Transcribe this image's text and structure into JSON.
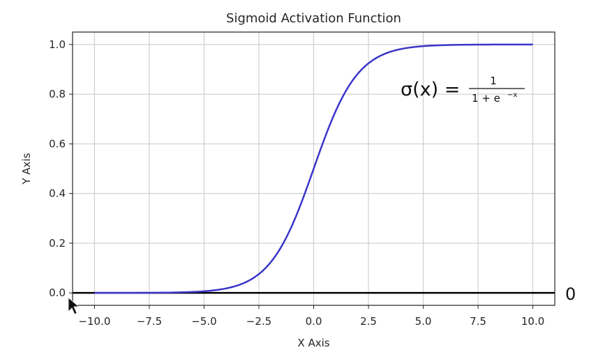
{
  "chart_data": {
    "type": "line",
    "title": "Sigmoid Activation Function",
    "xlabel": "X Axis",
    "ylabel": "Y Axis",
    "xlim": [
      -11.0,
      11.0
    ],
    "ylim": [
      -0.05,
      1.05
    ],
    "grid": true,
    "x_ticks": [
      -10.0,
      -7.5,
      -5.0,
      -2.5,
      0.0,
      2.5,
      5.0,
      7.5,
      10.0
    ],
    "x_tick_labels": [
      "−10.0",
      "−7.5",
      "−5.0",
      "−2.5",
      "0.0",
      "2.5",
      "5.0",
      "7.5",
      "10.0"
    ],
    "y_ticks": [
      0.0,
      0.2,
      0.4,
      0.6,
      0.8,
      1.0
    ],
    "y_tick_labels": [
      "0.0",
      "0.2",
      "0.4",
      "0.6",
      "0.8",
      "1.0"
    ],
    "series": [
      {
        "color": "#3a36c8",
        "x": [
          -10,
          -9,
          -8,
          -7,
          -6,
          -5,
          -4,
          -3,
          -2.5,
          -2,
          -1.5,
          -1,
          -0.5,
          0,
          0.5,
          1,
          1.5,
          2,
          2.5,
          3,
          4,
          5,
          6,
          7,
          8,
          9,
          10
        ],
        "y": [
          4.54e-05,
          0.000123,
          0.000335,
          0.000911,
          0.00247,
          0.00669,
          0.018,
          0.0474,
          0.0759,
          0.1192,
          0.1824,
          0.2689,
          0.3775,
          0.5,
          0.6225,
          0.7311,
          0.8176,
          0.8808,
          0.9241,
          0.9526,
          0.982,
          0.9933,
          0.9975,
          0.9991,
          0.99966,
          0.99988,
          0.99995
        ]
      }
    ],
    "hlines": [
      {
        "y": 0.0,
        "color": "#000000"
      }
    ],
    "annotation": {
      "lhs": "σ(x) =",
      "numerator": "1",
      "denominator": "1 + e",
      "exponent": "−x"
    },
    "side_label": "0"
  }
}
